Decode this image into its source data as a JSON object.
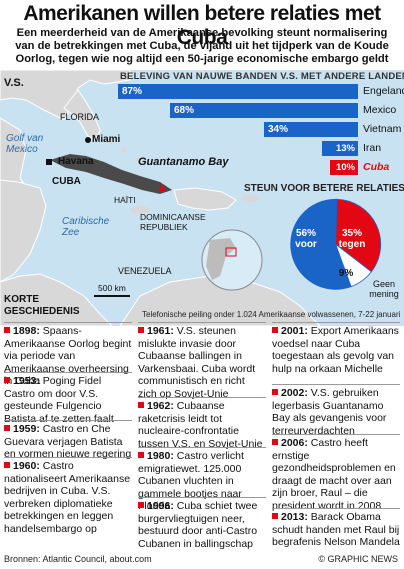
{
  "header": {
    "title": "Amerikanen willen betere relaties met Cuba",
    "subtitle": "Een meerderheid van de Amerikaanse bevolking steunt normalisering van de betrekkingen met Cuba, de vijand uit het tijdperk van de Koude Oorlog, tegen wie nog altijd een 50-jarige economische embargo geldt"
  },
  "map": {
    "labels": {
      "usa": "V.S.",
      "florida": "FLORIDA",
      "miami": "Miami",
      "gulf": "Golf van Mexico",
      "havana": "Havana",
      "cuba": "CUBA",
      "guantanamo": "Guantanamo Bay",
      "haiti": "HAÏTI",
      "dominican": "DOMINICAANSE REPUBLIEK",
      "caribbean": "Caribische Zee",
      "venezuela": "VENEZUELA",
      "scale": "500 km"
    },
    "colors": {
      "land": "#d8d8d8",
      "sea": "#c9e2f2",
      "cuba": "#4a4a4a"
    }
  },
  "chart_data": [
    {
      "type": "bar",
      "title": "BELEVING VAN NAUWE BANDEN V.S. MET ANDERE LANDEN",
      "categories": [
        "Engeland",
        "Mexico",
        "Vietnam",
        "Iran",
        "Cuba"
      ],
      "values": [
        87,
        68,
        34,
        13,
        10
      ],
      "value_labels": [
        "87%",
        "68%",
        "34%",
        "13%",
        "10%"
      ],
      "colors": [
        "#1a63c7",
        "#1a63c7",
        "#1a63c7",
        "#1a63c7",
        "#e30613"
      ],
      "xlim": [
        0,
        100
      ]
    },
    {
      "type": "pie",
      "title": "STEUN VOOR BETERE RELATIES",
      "slices": [
        {
          "label": "voor",
          "value": 56,
          "text": "56% voor",
          "color": "#1a63c7"
        },
        {
          "label": "tegen",
          "value": 35,
          "text": "35% tegen",
          "color": "#e30613"
        },
        {
          "label": "Geen mening",
          "value": 9,
          "text": "9%",
          "color": "#ffffff"
        }
      ],
      "no_opinion_label": "Geen mening"
    }
  ],
  "poll_note": "Telefonische peiling onder 1.024 Amerikaanse volwassenen, 7-22 januari",
  "history": {
    "title_lines": [
      "KORTE",
      "GESCHIEDENIS"
    ],
    "entries": [
      {
        "year": "1898:",
        "text": "Spaans-Amerikaanse Oorlog begint via periode van Amerikaanse overheersing in Cuba"
      },
      {
        "year": "1953:",
        "text": "Poging Fidel Castro om door V.S. gesteunde Fulgencio Batista af te zetten faalt"
      },
      {
        "year": "1959:",
        "text": "Castro en Che Guevara verjagen Batista en vormen nieuwe regering"
      },
      {
        "year": "1960:",
        "text": "Castro nationaliseert Amerikaanse bedrijven in Cuba. V.S. verbreken diplomatieke betrekkingen en leggen handelsembargo op"
      },
      {
        "year": "1961:",
        "text": "V.S. steunen mislukte invasie door Cubaanse ballingen in Varkensbaai. Cuba wordt communistisch en richt zich op Sovjet-Unie"
      },
      {
        "year": "1962:",
        "text": "Cubaanse raketcrisis leidt tot nucleaire-confrontatie tussen V.S. en Sovjet-Unie"
      },
      {
        "year": "1980:",
        "text": "Castro verlicht emigratiewet. 125.000 Cubanen vluchten in gammele bootjes naar Florida"
      },
      {
        "year": "1996:",
        "text": "Cuba schiet twee burgervliegtuigen neer, bestuurd door anti-Castro Cubanen in ballingschap"
      },
      {
        "year": "2001:",
        "text": "Export Amerikaans voedsel naar Cuba toegestaan als gevolg van hulp na orkaan Michelle"
      },
      {
        "year": "2002:",
        "text": "V.S. gebruiken legerbasis Guantanamo Bay als gevangenis voor terreurverdachten"
      },
      {
        "year": "2006:",
        "text": "Castro heeft ernstige gezondheidsproblemen en draagt de macht over aan zijn broer, Raul – die president wordt in 2008"
      },
      {
        "year": "2013:",
        "text": "Barack Obama schudt handen met Raul bij begrafenis Nelson Mandela"
      }
    ]
  },
  "footer": {
    "sources": "Bronnen: Atlantic Council, about.com",
    "copyright": "© GRAPHIC NEWS"
  }
}
